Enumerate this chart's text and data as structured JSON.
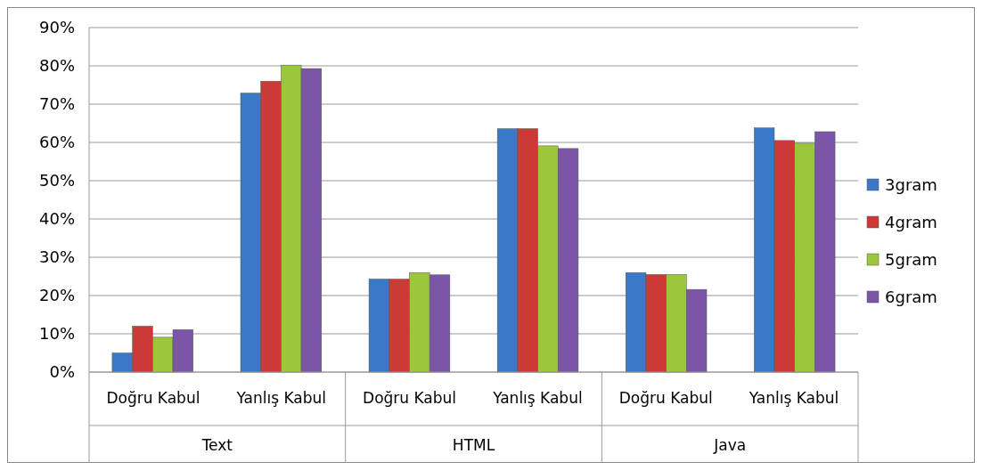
{
  "chart_data": {
    "type": "bar",
    "categories": [
      "Doğru Kabul",
      "Yanlış Kabul",
      "Doğru Kabul",
      "Yanlış Kabul",
      "Doğru Kabul",
      "Yanlış Kabul"
    ],
    "annotations": [
      "Text",
      "HTML",
      "Java"
    ],
    "series": [
      {
        "name": "3gram",
        "color": "#3a78c8",
        "values": [
          5,
          72.9,
          24.3,
          63.6,
          26,
          63.8
        ]
      },
      {
        "name": "4gram",
        "color": "#cc3a37",
        "values": [
          12,
          76,
          24.3,
          63.6,
          25.5,
          60.5
        ]
      },
      {
        "name": "5gram",
        "color": "#9cc63b",
        "values": [
          9.1,
          80.2,
          26,
          59.1,
          25.5,
          59.8
        ]
      },
      {
        "name": "6gram",
        "color": "#7b56a8",
        "values": [
          11.1,
          79.3,
          25.4,
          58.4,
          21.6,
          62.8
        ]
      }
    ],
    "ylim": [
      0,
      90
    ],
    "yticks": [
      {
        "value": 0,
        "label": "0%"
      },
      {
        "value": 10,
        "label": "10%"
      },
      {
        "value": 20,
        "label": "20%"
      },
      {
        "value": 30,
        "label": "30%"
      },
      {
        "value": 40,
        "label": "40%"
      },
      {
        "value": 50,
        "label": "50%"
      },
      {
        "value": 60,
        "label": "60%"
      },
      {
        "value": 70,
        "label": "70%"
      },
      {
        "value": 80,
        "label": "80%"
      },
      {
        "value": 90,
        "label": "90%"
      }
    ],
    "grid": "y",
    "legend": "right"
  }
}
